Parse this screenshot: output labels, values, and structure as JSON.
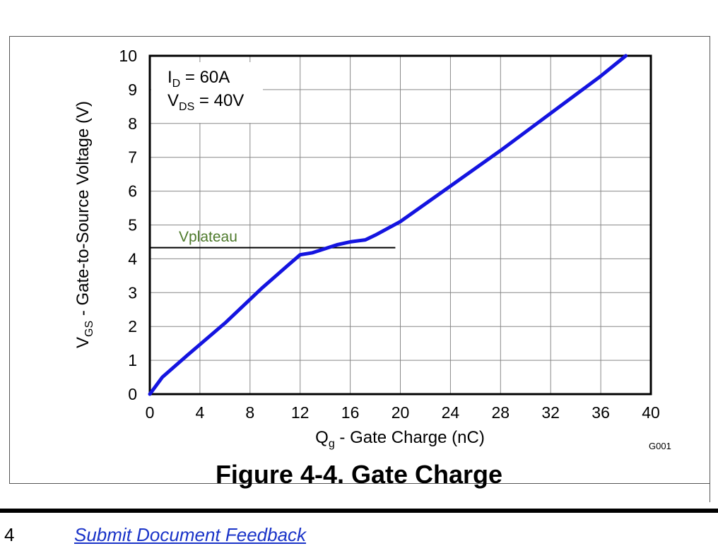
{
  "chart_data": {
    "type": "line",
    "title": "Figure 4-4. Gate Charge",
    "xlabel": {
      "main": "Q",
      "sub": "g",
      "rest": " - Gate Charge  (nC)"
    },
    "ylabel": {
      "main": "V",
      "sub": "GS",
      "rest": " - Gate-to-Source Voltage (V)"
    },
    "xlim": [
      0,
      40
    ],
    "ylim": [
      0,
      10
    ],
    "xticks": [
      0,
      4,
      8,
      12,
      16,
      20,
      24,
      28,
      32,
      36,
      40
    ],
    "yticks": [
      0,
      1,
      2,
      3,
      4,
      5,
      6,
      7,
      8,
      9,
      10
    ],
    "grid": true,
    "conditions": [
      {
        "main": "I",
        "sub": "D",
        "rest": " = 60A"
      },
      {
        "main": "V",
        "sub": "DS",
        "rest": " = 40V"
      }
    ],
    "series": [
      {
        "color": "#1414e0",
        "x": [
          0,
          1,
          3,
          6,
          9,
          11,
          12,
          13,
          14,
          15,
          16,
          17.2,
          18,
          20,
          24,
          28,
          32,
          36,
          38
        ],
        "y": [
          0,
          0.5,
          1.15,
          2.1,
          3.15,
          3.8,
          4.12,
          4.18,
          4.3,
          4.42,
          4.5,
          4.56,
          4.7,
          5.1,
          6.15,
          7.2,
          8.3,
          9.4,
          10
        ]
      }
    ],
    "annotation": {
      "label": "Vplateau",
      "y": 4.33,
      "x_start": 0,
      "x_end": 19.6,
      "label_color": "#4e7a2c"
    },
    "code": "G001"
  },
  "footer": {
    "page_number": "4",
    "feedback_link": "Submit Document Feedback"
  }
}
